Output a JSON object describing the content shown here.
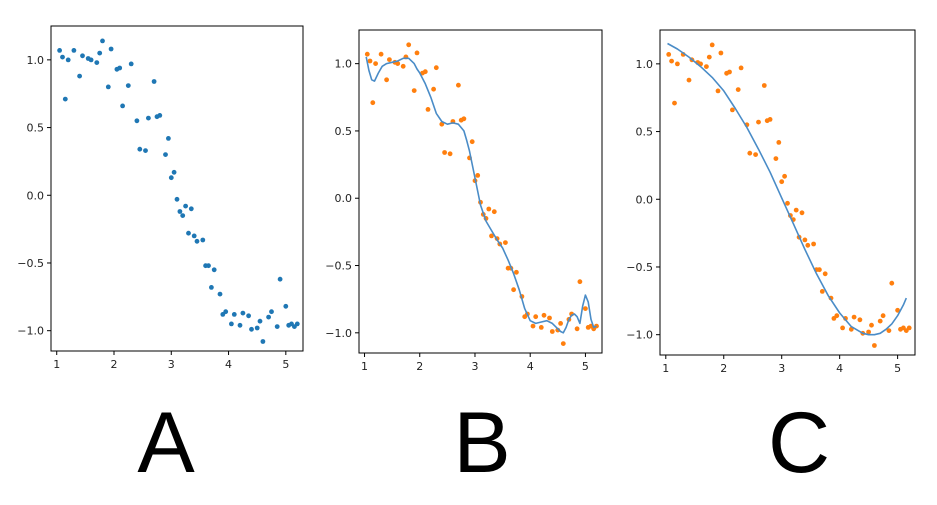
{
  "colors": {
    "data_first": "#1f77b4",
    "data_other": "#ff7f0e",
    "fit": "#4a8cc7",
    "axes": "#000000"
  },
  "chart_data": [
    {
      "type": "scatter",
      "panel_label": "A",
      "xlim": [
        0.9,
        5.3
      ],
      "ylim": [
        -1.15,
        1.25
      ],
      "xticks": [
        1,
        2,
        3,
        4,
        5
      ],
      "yticks": [
        -1.0,
        -0.5,
        0.0,
        0.5,
        1.0
      ],
      "ytick_labels": [
        "−1.0",
        "−0.5",
        "0.0",
        "0.5",
        "1.0"
      ],
      "grid": false,
      "series": [
        {
          "style": "points",
          "color": "#1f77b4",
          "x": [
            1.05,
            1.1,
            1.15,
            1.2,
            1.3,
            1.4,
            1.45,
            1.55,
            1.6,
            1.7,
            1.75,
            1.8,
            1.9,
            1.95,
            2.05,
            2.1,
            2.15,
            2.25,
            2.3,
            2.4,
            2.45,
            2.55,
            2.6,
            2.7,
            2.75,
            2.8,
            2.9,
            2.95,
            3.0,
            3.05,
            3.1,
            3.15,
            3.2,
            3.25,
            3.3,
            3.35,
            3.4,
            3.45,
            3.55,
            3.6,
            3.65,
            3.7,
            3.75,
            3.85,
            3.9,
            3.95,
            4.05,
            4.1,
            4.2,
            4.25,
            4.35,
            4.4,
            4.5,
            4.55,
            4.6,
            4.7,
            4.75,
            4.85,
            4.9,
            5.0,
            5.05,
            5.1,
            5.15,
            5.2
          ],
          "y": [
            1.07,
            1.02,
            0.71,
            1.0,
            1.07,
            0.88,
            1.03,
            1.01,
            1.0,
            0.98,
            1.05,
            1.14,
            0.8,
            1.08,
            0.93,
            0.94,
            0.66,
            0.81,
            0.97,
            0.55,
            0.34,
            0.33,
            0.57,
            0.84,
            0.58,
            0.59,
            0.3,
            0.42,
            0.13,
            0.17,
            -0.03,
            -0.12,
            -0.15,
            -0.08,
            -0.28,
            -0.1,
            -0.3,
            -0.34,
            -0.33,
            -0.52,
            -0.52,
            -0.68,
            -0.55,
            -0.73,
            -0.88,
            -0.86,
            -0.95,
            -0.88,
            -0.96,
            -0.87,
            -0.89,
            -0.99,
            -0.98,
            -0.93,
            -1.08,
            -0.9,
            -0.86,
            -0.97,
            -0.62,
            -0.82,
            -0.96,
            -0.95,
            -0.97,
            -0.95
          ]
        }
      ]
    },
    {
      "type": "scatter",
      "panel_label": "B",
      "xlim": [
        0.9,
        5.3
      ],
      "ylim": [
        -1.15,
        1.25
      ],
      "xticks": [
        1,
        2,
        3,
        4,
        5
      ],
      "yticks": [
        -1.0,
        -0.5,
        0.0,
        0.5,
        1.0
      ],
      "ytick_labels": [
        "−1.0",
        "−0.5",
        "0.0",
        "0.5",
        "1.0"
      ],
      "grid": false,
      "series": [
        {
          "style": "points",
          "color": "#ff7f0e",
          "x": [
            1.05,
            1.1,
            1.15,
            1.2,
            1.3,
            1.4,
            1.45,
            1.55,
            1.6,
            1.7,
            1.75,
            1.8,
            1.9,
            1.95,
            2.05,
            2.1,
            2.15,
            2.25,
            2.3,
            2.4,
            2.45,
            2.55,
            2.6,
            2.7,
            2.75,
            2.8,
            2.9,
            2.95,
            3.0,
            3.05,
            3.1,
            3.15,
            3.2,
            3.25,
            3.3,
            3.35,
            3.4,
            3.45,
            3.55,
            3.6,
            3.65,
            3.7,
            3.75,
            3.85,
            3.9,
            3.95,
            4.05,
            4.1,
            4.2,
            4.25,
            4.35,
            4.4,
            4.5,
            4.55,
            4.6,
            4.7,
            4.75,
            4.85,
            4.9,
            5.0,
            5.05,
            5.1,
            5.15,
            5.2
          ],
          "y": [
            1.07,
            1.02,
            0.71,
            1.0,
            1.07,
            0.88,
            1.03,
            1.01,
            1.0,
            0.98,
            1.05,
            1.14,
            0.8,
            1.08,
            0.93,
            0.94,
            0.66,
            0.81,
            0.97,
            0.55,
            0.34,
            0.33,
            0.57,
            0.84,
            0.58,
            0.59,
            0.3,
            0.42,
            0.13,
            0.17,
            -0.03,
            -0.12,
            -0.15,
            -0.08,
            -0.28,
            -0.1,
            -0.3,
            -0.34,
            -0.33,
            -0.52,
            -0.52,
            -0.68,
            -0.55,
            -0.73,
            -0.88,
            -0.86,
            -0.95,
            -0.88,
            -0.96,
            -0.87,
            -0.89,
            -0.99,
            -0.98,
            -0.93,
            -1.08,
            -0.9,
            -0.86,
            -0.97,
            -0.62,
            -0.82,
            -0.96,
            -0.95,
            -0.97,
            -0.95
          ]
        },
        {
          "style": "line",
          "color": "#4a8cc7",
          "x": [
            1.03,
            1.08,
            1.13,
            1.18,
            1.25,
            1.32,
            1.4,
            1.5,
            1.6,
            1.7,
            1.8,
            1.9,
            1.95,
            2.0,
            2.1,
            2.2,
            2.3,
            2.4,
            2.5,
            2.6,
            2.7,
            2.8,
            2.85,
            2.9,
            3.0,
            3.1,
            3.2,
            3.3,
            3.4,
            3.5,
            3.6,
            3.7,
            3.8,
            3.9,
            4.0,
            4.1,
            4.2,
            4.3,
            4.4,
            4.5,
            4.55,
            4.6,
            4.65,
            4.7,
            4.75,
            4.8,
            4.85,
            4.9,
            4.95,
            5.0,
            5.05,
            5.1,
            5.15,
            5.2
          ],
          "y": [
            1.05,
            0.95,
            0.88,
            0.87,
            0.93,
            0.98,
            1.0,
            1.01,
            1.02,
            1.04,
            1.04,
            1.0,
            0.96,
            0.93,
            0.85,
            0.75,
            0.63,
            0.57,
            0.55,
            0.56,
            0.55,
            0.5,
            0.43,
            0.35,
            0.15,
            -0.05,
            -0.17,
            -0.24,
            -0.31,
            -0.37,
            -0.46,
            -0.56,
            -0.68,
            -0.82,
            -0.91,
            -0.93,
            -0.92,
            -0.91,
            -0.93,
            -0.97,
            -0.99,
            -1.0,
            -0.96,
            -0.9,
            -0.87,
            -0.86,
            -0.88,
            -0.93,
            -0.8,
            -0.72,
            -0.77,
            -0.9,
            -0.96,
            -0.95
          ]
        }
      ]
    },
    {
      "type": "scatter",
      "panel_label": "C",
      "xlim": [
        0.9,
        5.3
      ],
      "ylim": [
        -1.15,
        1.25
      ],
      "xticks": [
        1,
        2,
        3,
        4,
        5
      ],
      "yticks": [
        -1.0,
        -0.5,
        0.0,
        0.5,
        1.0
      ],
      "ytick_labels": [
        "−1.0",
        "−0.5",
        "0.0",
        "0.5",
        "1.0"
      ],
      "grid": false,
      "series": [
        {
          "style": "points",
          "color": "#ff7f0e",
          "x": [
            1.05,
            1.1,
            1.15,
            1.2,
            1.3,
            1.4,
            1.45,
            1.55,
            1.6,
            1.7,
            1.75,
            1.8,
            1.9,
            1.95,
            2.05,
            2.1,
            2.15,
            2.25,
            2.3,
            2.4,
            2.45,
            2.55,
            2.6,
            2.7,
            2.75,
            2.8,
            2.9,
            2.95,
            3.0,
            3.05,
            3.1,
            3.15,
            3.2,
            3.25,
            3.3,
            3.35,
            3.4,
            3.45,
            3.55,
            3.6,
            3.65,
            3.7,
            3.75,
            3.85,
            3.9,
            3.95,
            4.05,
            4.1,
            4.2,
            4.25,
            4.35,
            4.4,
            4.5,
            4.55,
            4.6,
            4.7,
            4.75,
            4.85,
            4.9,
            5.0,
            5.05,
            5.1,
            5.15,
            5.2
          ],
          "y": [
            1.07,
            1.02,
            0.71,
            1.0,
            1.07,
            0.88,
            1.03,
            1.01,
            1.0,
            0.98,
            1.05,
            1.14,
            0.8,
            1.08,
            0.93,
            0.94,
            0.66,
            0.81,
            0.97,
            0.55,
            0.34,
            0.33,
            0.57,
            0.84,
            0.58,
            0.59,
            0.3,
            0.42,
            0.13,
            0.17,
            -0.03,
            -0.12,
            -0.15,
            -0.08,
            -0.28,
            -0.1,
            -0.3,
            -0.34,
            -0.33,
            -0.52,
            -0.52,
            -0.68,
            -0.55,
            -0.73,
            -0.88,
            -0.86,
            -0.95,
            -0.88,
            -0.96,
            -0.87,
            -0.89,
            -0.99,
            -0.98,
            -0.93,
            -1.08,
            -0.9,
            -0.86,
            -0.97,
            -0.62,
            -0.82,
            -0.96,
            -0.95,
            -0.97,
            -0.95
          ]
        },
        {
          "style": "line",
          "color": "#4a8cc7",
          "x": [
            1.03,
            1.2,
            1.4,
            1.6,
            1.8,
            2.0,
            2.2,
            2.4,
            2.6,
            2.8,
            3.0,
            3.2,
            3.4,
            3.6,
            3.8,
            4.0,
            4.2,
            4.4,
            4.5,
            4.6,
            4.7,
            4.8,
            4.9,
            5.0,
            5.1,
            5.15
          ],
          "y": [
            1.15,
            1.11,
            1.05,
            0.98,
            0.9,
            0.8,
            0.67,
            0.53,
            0.37,
            0.2,
            0.01,
            -0.18,
            -0.37,
            -0.55,
            -0.71,
            -0.84,
            -0.94,
            -0.99,
            -1.0,
            -1.0,
            -0.99,
            -0.96,
            -0.92,
            -0.86,
            -0.78,
            -0.73
          ]
        }
      ]
    }
  ]
}
